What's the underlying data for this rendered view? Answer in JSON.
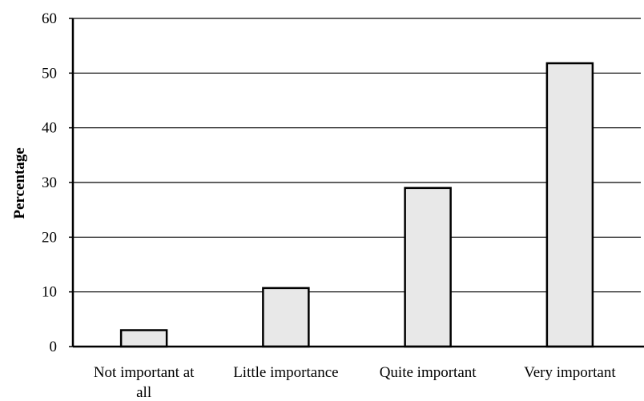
{
  "chart_data": {
    "type": "bar",
    "title": "",
    "xlabel": "",
    "ylabel": "Percentage",
    "categories": [
      "Not important at all",
      "Little importance",
      "Quite important",
      "Very important"
    ],
    "category_label_lines": [
      [
        "Not important at",
        "all"
      ],
      [
        "Little importance"
      ],
      [
        "Quite important"
      ],
      [
        "Very important"
      ]
    ],
    "values": [
      3,
      10.7,
      29,
      51.8
    ],
    "ylim": [
      0,
      60
    ],
    "yticks": [
      0,
      10,
      20,
      30,
      40,
      50,
      60
    ],
    "grid": true,
    "legend": "none",
    "colors": {
      "bar_fill": "#e8e8e8",
      "bar_stroke": "#000000",
      "grid": "#000000",
      "axis": "#000000"
    }
  }
}
